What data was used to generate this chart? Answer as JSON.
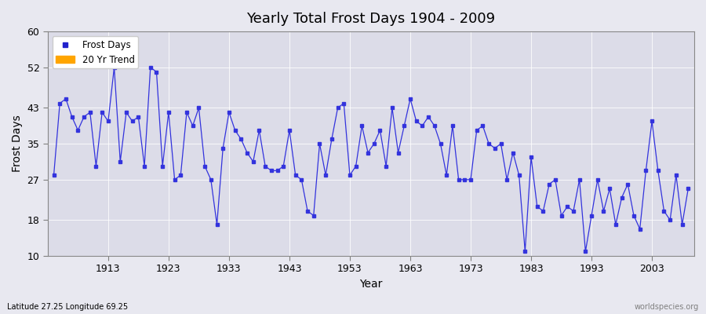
{
  "title": "Yearly Total Frost Days 1904 - 2009",
  "xlabel": "Year",
  "ylabel": "Frost Days",
  "bottom_left_text": "Latitude 27.25 Longitude 69.25",
  "bottom_right_text": "worldspecies.org",
  "legend": [
    "Frost Days",
    "20 Yr Trend"
  ],
  "legend_colors": [
    "#2222cc",
    "#FFA500"
  ],
  "ylim": [
    10,
    60
  ],
  "yticks": [
    10,
    18,
    27,
    35,
    43,
    52,
    60
  ],
  "xticks": [
    1913,
    1923,
    1933,
    1943,
    1953,
    1963,
    1973,
    1983,
    1993,
    2003
  ],
  "bg_color": "#e8e8f0",
  "plot_bg_color": "#dcdce8",
  "line_color": "#3333dd",
  "years": [
    1904,
    1905,
    1906,
    1907,
    1908,
    1909,
    1910,
    1911,
    1912,
    1913,
    1914,
    1915,
    1916,
    1917,
    1918,
    1919,
    1920,
    1921,
    1922,
    1923,
    1924,
    1925,
    1926,
    1927,
    1928,
    1929,
    1930,
    1931,
    1932,
    1933,
    1934,
    1935,
    1936,
    1937,
    1938,
    1939,
    1940,
    1941,
    1942,
    1943,
    1944,
    1945,
    1946,
    1947,
    1948,
    1949,
    1950,
    1951,
    1952,
    1953,
    1954,
    1955,
    1956,
    1957,
    1958,
    1959,
    1960,
    1961,
    1962,
    1963,
    1964,
    1965,
    1966,
    1967,
    1968,
    1969,
    1970,
    1971,
    1972,
    1973,
    1974,
    1975,
    1976,
    1977,
    1978,
    1979,
    1980,
    1981,
    1982,
    1983,
    1984,
    1985,
    1986,
    1987,
    1988,
    1989,
    1990,
    1991,
    1992,
    1993,
    1994,
    1995,
    1996,
    1997,
    1998,
    1999,
    2000,
    2001,
    2002,
    2003,
    2004,
    2005,
    2006,
    2007,
    2008,
    2009
  ],
  "values": [
    28,
    44,
    45,
    41,
    38,
    41,
    42,
    30,
    42,
    40,
    52,
    31,
    42,
    40,
    41,
    30,
    52,
    51,
    30,
    42,
    27,
    28,
    42,
    39,
    43,
    30,
    27,
    17,
    34,
    42,
    38,
    36,
    33,
    31,
    38,
    30,
    29,
    29,
    30,
    38,
    28,
    27,
    20,
    19,
    35,
    28,
    36,
    43,
    44,
    28,
    30,
    39,
    33,
    35,
    38,
    30,
    43,
    33,
    39,
    45,
    40,
    39,
    41,
    39,
    35,
    28,
    39,
    27,
    27,
    27,
    38,
    39,
    35,
    34,
    35,
    27,
    33,
    28,
    11,
    32,
    21,
    20,
    26,
    27,
    19,
    21,
    20,
    27,
    11,
    19,
    27,
    20,
    25,
    17,
    23,
    26,
    19,
    16,
    29,
    40,
    29,
    20,
    18,
    28,
    17,
    25
  ]
}
